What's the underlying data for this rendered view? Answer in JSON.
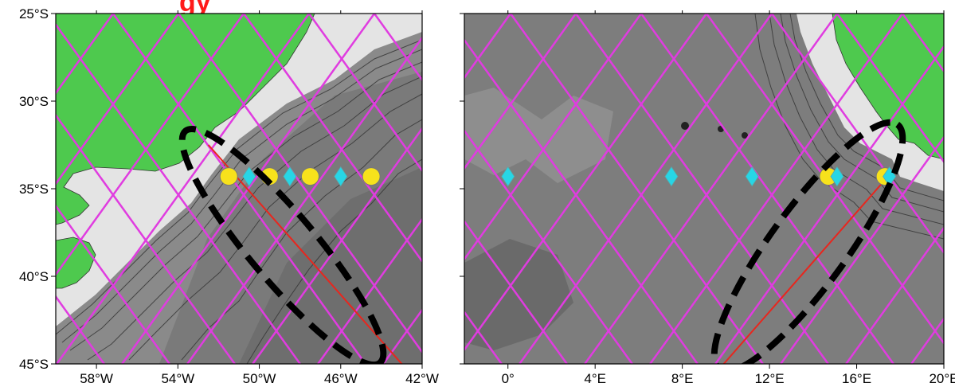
{
  "colors": {
    "land": "#4ec94e",
    "shelf": "#e4e4e4",
    "ocean_mid": "#8a8a8a",
    "ocean_deep": "#6e6e6e",
    "tracks": "#e03ce0",
    "section_line": "#e8261e",
    "circle_marker": "#f7e21c",
    "diamond_marker": "#27d6e6",
    "highlight_ellipse": "#000000",
    "clipped_title": "#ff1a1a"
  },
  "clipped_title_fragment": "gy",
  "left_map": {
    "lat_labels": [
      "25°S",
      "30°S",
      "35°S",
      "40°S",
      "45°S"
    ],
    "lon_labels": [
      "58°W",
      "54°W",
      "50°W",
      "46°W",
      "42°W"
    ],
    "lon_range": [
      -60,
      -42
    ],
    "lat_range": [
      -45,
      -25
    ],
    "markers": [
      {
        "type": "circle",
        "lon": -51.5,
        "lat": -34.3
      },
      {
        "type": "diamond",
        "lon": -50.5,
        "lat": -34.3
      },
      {
        "type": "circle",
        "lon": -49.5,
        "lat": -34.3
      },
      {
        "type": "diamond",
        "lon": -48.5,
        "lat": -34.3
      },
      {
        "type": "circle",
        "lon": -47.5,
        "lat": -34.3
      },
      {
        "type": "diamond",
        "lon": -46.0,
        "lat": -34.3
      },
      {
        "type": "circle",
        "lon": -44.5,
        "lat": -34.3
      }
    ],
    "section_line": [
      {
        "lon": -52.5,
        "lat": -32.5
      },
      {
        "lon": -43.0,
        "lat": -45.0
      }
    ]
  },
  "right_map": {
    "lon_labels": [
      "0°",
      "4°E",
      "8°E",
      "12°E",
      "16°E",
      "20°E"
    ],
    "lon_range": [
      -2,
      20
    ],
    "lat_range": [
      -45,
      -25
    ],
    "markers": [
      {
        "type": "diamond",
        "lon": 0.0,
        "lat": -34.3
      },
      {
        "type": "diamond",
        "lon": 7.5,
        "lat": -34.3
      },
      {
        "type": "diamond",
        "lon": 11.2,
        "lat": -34.3
      },
      {
        "type": "circle",
        "lon": 14.7,
        "lat": -34.3
      },
      {
        "type": "diamond",
        "lon": 15.1,
        "lat": -34.3
      },
      {
        "type": "circle",
        "lon": 17.3,
        "lat": -34.3
      },
      {
        "type": "diamond",
        "lon": 17.5,
        "lat": -34.3
      }
    ],
    "section_line": [
      {
        "lon": 9.9,
        "lat": -45.0
      },
      {
        "lon": 18.0,
        "lat": -33.5
      }
    ]
  }
}
